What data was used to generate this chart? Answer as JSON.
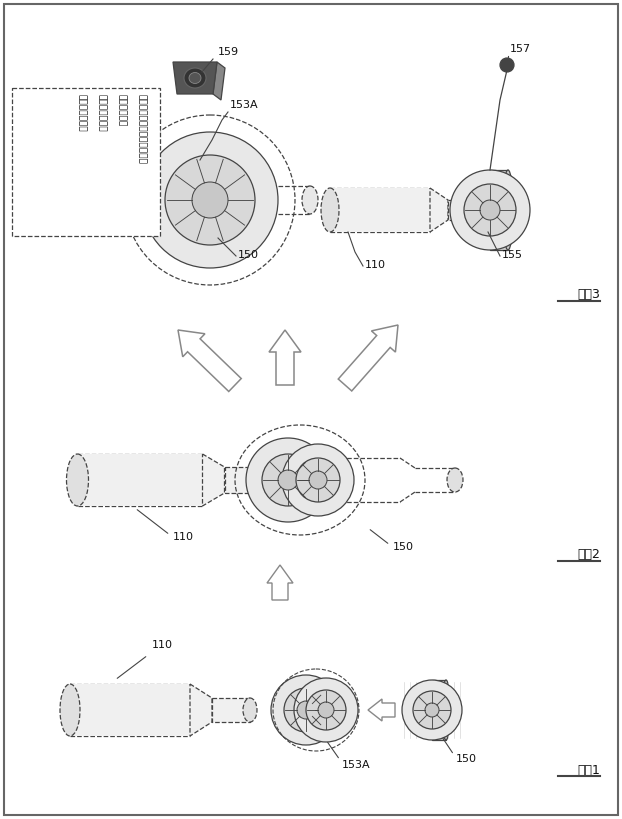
{
  "bg_color": "#ffffff",
  "line_color": "#444444",
  "text_color": "#111111",
  "gray_line": "#888888",
  "labels": {
    "step1": "工程1",
    "step2": "工程2",
    "step3": "工程3",
    "box_line1": "ユーザはバーコード、または",
    "box_line2": "調剤剰または",
    "box_line3": "調剤制別識子を",
    "box_line4": "手動で入力する",
    "n110": "110",
    "n150": "150",
    "n153A": "153A",
    "n155": "155",
    "n157": "157",
    "n159": "159"
  }
}
